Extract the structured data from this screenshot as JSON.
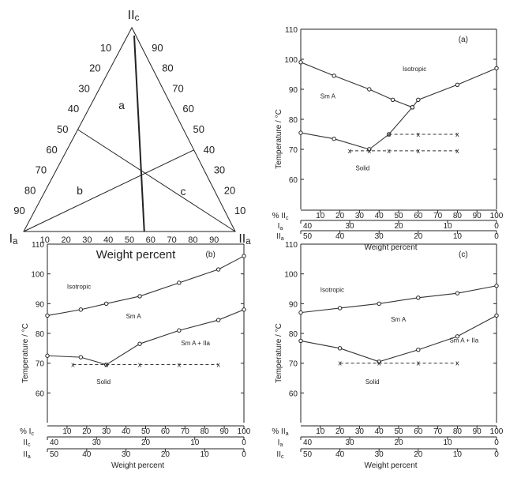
{
  "chart_data": [
    {
      "type": "ternary",
      "panel": "ternary",
      "vertices": {
        "top": "II",
        "top_sub": "c",
        "left": "I",
        "left_sub": "a",
        "right": "II",
        "right_sub": "a"
      },
      "bottom_ticks": [
        "10",
        "20",
        "30",
        "40",
        "50",
        "60",
        "70",
        "80",
        "90"
      ],
      "left_ticks": [
        "10",
        "20",
        "30",
        "40",
        "50",
        "60",
        "70",
        "80",
        "90"
      ],
      "right_ticks": [
        "90",
        "80",
        "70",
        "60",
        "50",
        "40",
        "30",
        "20",
        "10"
      ],
      "xlabel": "Weight percent",
      "line_labels": [
        "a",
        "b",
        "c"
      ],
      "lines": [
        {
          "label": "a",
          "from_edge": "top",
          "to_bottom": 57
        },
        {
          "label": "b",
          "from_vertex": "left",
          "to_right_edge": 40
        },
        {
          "label": "c",
          "from_vertex": "right",
          "to_left_edge": 50
        }
      ]
    },
    {
      "type": "line",
      "panel": "a",
      "panel_label": "(a)",
      "ylabel": "Temperature / °C",
      "xlabel": "Weight percent",
      "ylim": [
        50,
        110
      ],
      "yticks": [
        "60",
        "70",
        "80",
        "90",
        "100",
        "110"
      ],
      "xlim": [
        0,
        100
      ],
      "axis_rows": [
        {
          "name": "%",
          "name_main": "II",
          "name_sub": "c",
          "ticks": [
            10,
            20,
            30,
            40,
            50,
            60,
            70,
            80,
            90,
            100
          ]
        },
        {
          "name_main": "I",
          "name_sub": "a",
          "ticks": [
            40,
            30,
            20,
            10,
            0
          ],
          "positions": [
            0,
            25,
            50,
            75,
            100
          ],
          "labels": [
            "40",
            "30",
            "20",
            "10",
            "0"
          ]
        },
        {
          "name_main": "II",
          "name_sub": "a",
          "labels": [
            "50",
            "40",
            "30",
            "20",
            "10",
            "0"
          ],
          "positions": [
            0,
            20,
            40,
            60,
            80,
            100
          ]
        }
      ],
      "region_labels": [
        {
          "text": "Isotropic",
          "x": 52,
          "y": 96
        },
        {
          "text": "Sm A",
          "x": 10,
          "y": 87
        },
        {
          "text": "Solid",
          "x": 28,
          "y": 63
        }
      ],
      "series": [
        {
          "style": "circles",
          "x": [
            0,
            17,
            35,
            47,
            57
          ],
          "y": [
            99,
            94.5,
            90,
            86.5,
            84
          ]
        },
        {
          "style": "circles",
          "x": [
            57,
            60,
            80,
            100
          ],
          "y": [
            84,
            86.5,
            91.5,
            97
          ]
        },
        {
          "style": "circles",
          "x": [
            0,
            17,
            35
          ],
          "y": [
            75.5,
            73.5,
            70
          ]
        },
        {
          "style": "circles",
          "x": [
            35,
            45,
            57
          ],
          "y": [
            70,
            75,
            84
          ]
        },
        {
          "style": "x-dashed",
          "x": [
            45,
            60,
            80
          ],
          "y": [
            75,
            75,
            75
          ]
        },
        {
          "style": "x-dashed",
          "x": [
            25,
            35,
            45,
            60,
            80
          ],
          "y": [
            69.5,
            69.5,
            69.5,
            69.5,
            69.5
          ]
        }
      ]
    },
    {
      "type": "line",
      "panel": "b",
      "panel_label": "(b)",
      "ylabel": "Temperature / °C",
      "xlabel": "Weight percent",
      "ylim": [
        50,
        110
      ],
      "yticks": [
        "60",
        "70",
        "80",
        "90",
        "100",
        "110"
      ],
      "xlim": [
        0,
        100
      ],
      "axis_rows": [
        {
          "name": "%",
          "name_main": "I",
          "name_sub": "c",
          "ticks": [
            10,
            20,
            30,
            40,
            50,
            60,
            70,
            80,
            90,
            100
          ]
        },
        {
          "name_main": "II",
          "name_sub": "c",
          "labels": [
            "40",
            "30",
            "20",
            "10",
            "0"
          ],
          "positions": [
            0,
            25,
            50,
            75,
            100
          ]
        },
        {
          "name_main": "II",
          "name_sub": "a",
          "labels": [
            "50",
            "40",
            "30",
            "20",
            "10",
            "0"
          ],
          "positions": [
            0,
            20,
            40,
            60,
            80,
            100
          ]
        }
      ],
      "region_labels": [
        {
          "text": "Isotropic",
          "x": 10,
          "y": 95
        },
        {
          "text": "Sm A",
          "x": 40,
          "y": 85
        },
        {
          "text": "Sm A + IIa",
          "x": 68,
          "y": 76
        },
        {
          "text": "Solid",
          "x": 25,
          "y": 63
        }
      ],
      "series": [
        {
          "style": "circles",
          "x": [
            0,
            17,
            30,
            47,
            67,
            87,
            100
          ],
          "y": [
            86,
            88,
            90,
            92.5,
            97,
            101.5,
            106
          ]
        },
        {
          "style": "circles",
          "x": [
            0,
            17,
            30,
            47,
            67,
            87,
            100
          ],
          "y": [
            72.5,
            72,
            69.5,
            76.5,
            81,
            84.5,
            88
          ]
        },
        {
          "style": "x-dashed",
          "x": [
            13,
            30,
            47,
            67,
            87
          ],
          "y": [
            69.5,
            69.5,
            69.5,
            69.5,
            69.5
          ]
        }
      ]
    },
    {
      "type": "line",
      "panel": "c",
      "panel_label": "(c)",
      "ylabel": "Temperature / °C",
      "xlabel": "Weight percent",
      "ylim": [
        50,
        110
      ],
      "yticks": [
        "60",
        "70",
        "80",
        "90",
        "100",
        "110"
      ],
      "xlim": [
        0,
        100
      ],
      "axis_rows": [
        {
          "name": "%",
          "name_main": "II",
          "name_sub": "a",
          "ticks": [
            10,
            20,
            30,
            40,
            50,
            60,
            70,
            80,
            90,
            100
          ]
        },
        {
          "name_main": "I",
          "name_sub": "a",
          "labels": [
            "40",
            "30",
            "20",
            "10",
            "0"
          ],
          "positions": [
            0,
            25,
            50,
            75,
            100
          ]
        },
        {
          "name_main": "II",
          "name_sub": "c",
          "labels": [
            "50",
            "40",
            "30",
            "20",
            "10",
            "0"
          ],
          "positions": [
            0,
            20,
            40,
            60,
            80,
            100
          ]
        }
      ],
      "region_labels": [
        {
          "text": "Isotropic",
          "x": 10,
          "y": 94
        },
        {
          "text": "Sm A",
          "x": 46,
          "y": 84
        },
        {
          "text": "Sm A + IIa",
          "x": 76,
          "y": 77
        },
        {
          "text": "Solid",
          "x": 33,
          "y": 63
        }
      ],
      "series": [
        {
          "style": "circles",
          "x": [
            0,
            20,
            40,
            60,
            80,
            100
          ],
          "y": [
            87,
            88.5,
            90,
            92,
            93.5,
            96
          ]
        },
        {
          "style": "circles",
          "x": [
            0,
            20,
            40,
            60,
            80,
            100
          ],
          "y": [
            77.5,
            75,
            70.5,
            74.5,
            79,
            86
          ]
        },
        {
          "style": "x-dashed",
          "x": [
            20,
            40,
            60,
            80
          ],
          "y": [
            70,
            70,
            70,
            70
          ]
        }
      ]
    }
  ]
}
